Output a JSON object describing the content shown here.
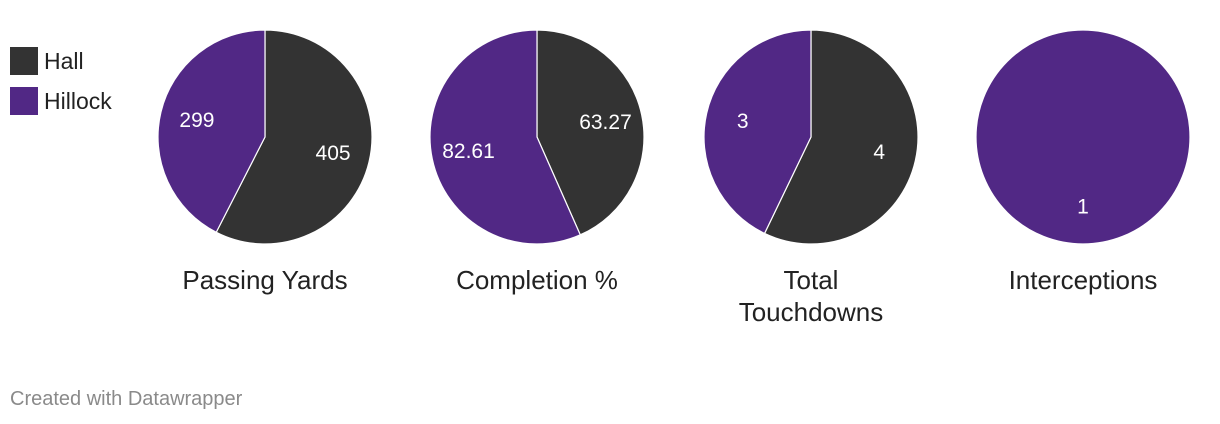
{
  "legend": [
    {
      "label": "Hall",
      "color": "#333333"
    },
    {
      "label": "Hillock",
      "color": "#512885"
    }
  ],
  "chart_data": {
    "type": "pie",
    "series_names": [
      "Hall",
      "Hillock"
    ],
    "colors": {
      "Hall": "#333333",
      "Hillock": "#512885"
    },
    "pies": [
      {
        "title": [
          "Passing Yards"
        ],
        "values": [
          {
            "series": "Hall",
            "value": 405,
            "label": "405"
          },
          {
            "series": "Hillock",
            "value": 299,
            "label": "299"
          }
        ]
      },
      {
        "title": [
          "Completion %"
        ],
        "values": [
          {
            "series": "Hall",
            "value": 63.27,
            "label": "63.27"
          },
          {
            "series": "Hillock",
            "value": 82.61,
            "label": "82.61"
          }
        ]
      },
      {
        "title": [
          "Total",
          "Touchdowns"
        ],
        "values": [
          {
            "series": "Hall",
            "value": 4,
            "label": "4"
          },
          {
            "series": "Hillock",
            "value": 3,
            "label": "3"
          }
        ]
      },
      {
        "title": [
          "Interceptions"
        ],
        "values": [
          {
            "series": "Hall",
            "value": 0,
            "label": ""
          },
          {
            "series": "Hillock",
            "value": 1,
            "label": "1"
          }
        ]
      }
    ]
  },
  "footer": "Created with Datawrapper"
}
